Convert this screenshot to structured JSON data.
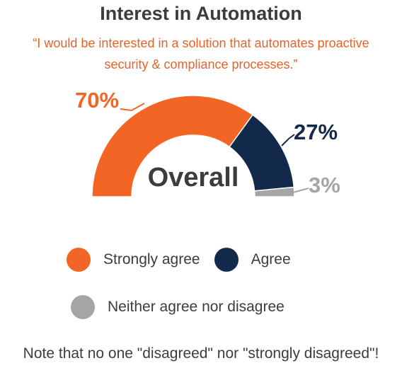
{
  "chart_data": {
    "type": "pie",
    "title": "Interest in Automation",
    "subtitle": "“I would be interested in a solution that automates proactive security & compliance processes.”",
    "center_label": "Overall",
    "categories": [
      "Strongly agree",
      "Agree",
      "Neither agree nor disagree"
    ],
    "values": [
      70,
      27,
      3
    ],
    "value_labels": [
      "70%",
      "27%",
      "3%"
    ],
    "colors": [
      "#f26524",
      "#13294b",
      "#a5a5a5"
    ],
    "legend_position": "bottom"
  },
  "note": "Note that no one \"disagreed\" nor \"strongly disagreed\"!"
}
